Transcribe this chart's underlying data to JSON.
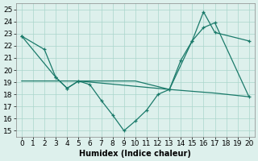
{
  "line1_x": [
    0,
    2,
    3,
    4,
    5,
    6,
    7,
    8,
    9,
    10,
    11,
    12,
    13,
    14,
    15,
    16,
    17,
    20
  ],
  "line1_y": [
    22.8,
    21.7,
    19.4,
    18.5,
    19.1,
    18.8,
    17.5,
    16.3,
    15.0,
    15.8,
    16.7,
    18.0,
    18.4,
    20.8,
    22.4,
    23.5,
    23.9,
    17.8
  ],
  "line2_x": [
    0,
    3,
    4,
    5,
    13,
    15,
    16,
    17,
    20
  ],
  "line2_y": [
    22.8,
    19.4,
    18.5,
    19.1,
    18.4,
    22.4,
    24.8,
    23.1,
    22.4
  ],
  "line3_x": [
    0,
    5,
    10,
    13,
    17,
    20
  ],
  "line3_y": [
    19.1,
    19.1,
    19.1,
    18.4,
    18.1,
    17.8
  ],
  "color": "#1a7a6a",
  "bg_color": "#ddf0ec",
  "grid_color": "#aad5cc",
  "xlabel": "Humidex (Indice chaleur)",
  "xlim": [
    -0.5,
    20.5
  ],
  "ylim": [
    14.5,
    25.5
  ],
  "xticks": [
    0,
    1,
    2,
    3,
    4,
    5,
    6,
    7,
    8,
    9,
    10,
    11,
    12,
    13,
    14,
    15,
    16,
    17,
    18,
    19,
    20
  ],
  "yticks": [
    15,
    16,
    17,
    18,
    19,
    20,
    21,
    22,
    23,
    24,
    25
  ],
  "xlabel_fontsize": 7,
  "tick_fontsize": 6.5
}
